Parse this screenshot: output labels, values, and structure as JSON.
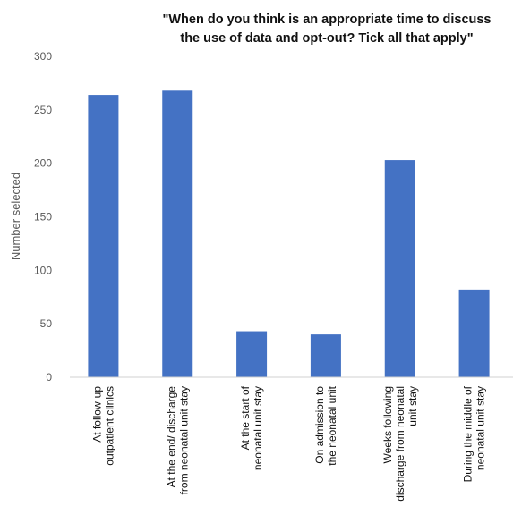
{
  "chart_data": {
    "type": "bar",
    "title_lines": [
      "\"When do you think is an appropriate time to discuss",
      "the use of data and opt-out?  Tick all that apply\""
    ],
    "ylabel": "Number selected",
    "xlabel": "",
    "ylim": [
      0,
      300
    ],
    "yticks": [
      0,
      50,
      100,
      150,
      200,
      250,
      300
    ],
    "grid": false,
    "legend": "none",
    "bar_color": "#4472c4",
    "categories": [
      [
        "At follow-up",
        "outpatient clinics"
      ],
      [
        "At the end/ discharge",
        "from neonatal unit stay"
      ],
      [
        "At the start of",
        "neonatal unit stay"
      ],
      [
        "On admission to",
        "the neonatal unit"
      ],
      [
        "Weeks following",
        "discharge from neonatal",
        "unit stay"
      ],
      [
        "During the middle of",
        "neonatal unit stay"
      ]
    ],
    "values": [
      264,
      268,
      43,
      40,
      203,
      82
    ]
  }
}
